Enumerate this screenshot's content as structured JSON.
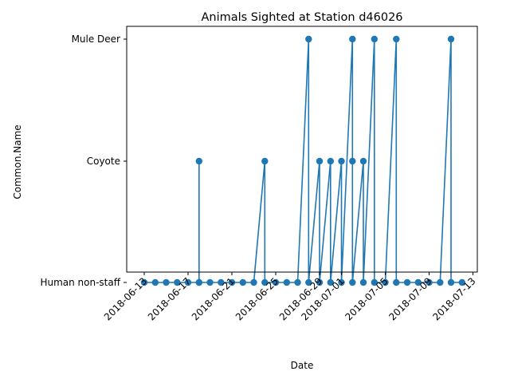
{
  "chart_data": {
    "type": "line",
    "title": "Animals Sighted at Station d46026",
    "xlabel": "Date",
    "ylabel": "Common.Name",
    "categories_y": [
      "Human non-staff",
      "Coyote",
      "Mule Deer"
    ],
    "x_ticks": [
      "2018-06-13",
      "2018-06-17",
      "2018-06-21",
      "2018-06-25",
      "2018-06-29",
      "2018-07-01",
      "2018-07-05",
      "2018-07-09",
      "2018-07-13"
    ],
    "xlim": [
      "2018-06-11",
      "2018-07-13"
    ],
    "grid": false,
    "legend": "none",
    "marker": "circle",
    "color": "#1f77b4",
    "series": [
      {
        "points": [
          {
            "x": "2018-06-13",
            "y": "Human non-staff"
          },
          {
            "x": "2018-06-14",
            "y": "Human non-staff"
          },
          {
            "x": "2018-06-15",
            "y": "Human non-staff"
          },
          {
            "x": "2018-06-16",
            "y": "Human non-staff"
          },
          {
            "x": "2018-06-17",
            "y": "Human non-staff"
          },
          {
            "x": "2018-06-18",
            "y": "Human non-staff"
          },
          {
            "x": "2018-06-18",
            "y": "Coyote"
          },
          {
            "x": "2018-06-18",
            "y": "Human non-staff"
          },
          {
            "x": "2018-06-19",
            "y": "Human non-staff"
          },
          {
            "x": "2018-06-20",
            "y": "Human non-staff"
          },
          {
            "x": "2018-06-21",
            "y": "Human non-staff"
          },
          {
            "x": "2018-06-22",
            "y": "Human non-staff"
          },
          {
            "x": "2018-06-23",
            "y": "Human non-staff"
          },
          {
            "x": "2018-06-24",
            "y": "Coyote"
          },
          {
            "x": "2018-06-24",
            "y": "Human non-staff"
          },
          {
            "x": "2018-06-25",
            "y": "Human non-staff"
          },
          {
            "x": "2018-06-26",
            "y": "Human non-staff"
          },
          {
            "x": "2018-06-27",
            "y": "Human non-staff"
          },
          {
            "x": "2018-06-28",
            "y": "Mule Deer"
          },
          {
            "x": "2018-06-28",
            "y": "Human non-staff"
          },
          {
            "x": "2018-06-29",
            "y": "Coyote"
          },
          {
            "x": "2018-06-29",
            "y": "Human non-staff"
          },
          {
            "x": "2018-06-30",
            "y": "Coyote"
          },
          {
            "x": "2018-06-30",
            "y": "Human non-staff"
          },
          {
            "x": "2018-07-01",
            "y": "Coyote"
          },
          {
            "x": "2018-07-01",
            "y": "Human non-staff"
          },
          {
            "x": "2018-07-02",
            "y": "Mule Deer"
          },
          {
            "x": "2018-07-02",
            "y": "Coyote"
          },
          {
            "x": "2018-07-02",
            "y": "Human non-staff"
          },
          {
            "x": "2018-07-03",
            "y": "Coyote"
          },
          {
            "x": "2018-07-03",
            "y": "Human non-staff"
          },
          {
            "x": "2018-07-04",
            "y": "Mule Deer"
          },
          {
            "x": "2018-07-04",
            "y": "Human non-staff"
          },
          {
            "x": "2018-07-05",
            "y": "Human non-staff"
          },
          {
            "x": "2018-07-06",
            "y": "Mule Deer"
          },
          {
            "x": "2018-07-06",
            "y": "Human non-staff"
          },
          {
            "x": "2018-07-07",
            "y": "Human non-staff"
          },
          {
            "x": "2018-07-08",
            "y": "Human non-staff"
          },
          {
            "x": "2018-07-09",
            "y": "Human non-staff"
          },
          {
            "x": "2018-07-10",
            "y": "Human non-staff"
          },
          {
            "x": "2018-07-11",
            "y": "Mule Deer"
          },
          {
            "x": "2018-07-11",
            "y": "Human non-staff"
          },
          {
            "x": "2018-07-12",
            "y": "Human non-staff"
          }
        ]
      }
    ]
  }
}
